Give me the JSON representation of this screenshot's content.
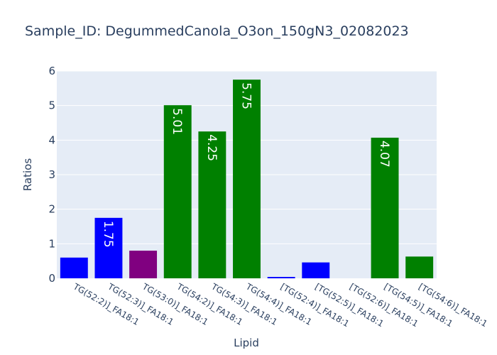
{
  "chart_data": {
    "type": "bar",
    "title": "Sample_ID: DegummedCanola_O3on_150gN3_02082023",
    "xlabel": "Lipid",
    "ylabel": "Ratios",
    "ylim": [
      0,
      6
    ],
    "yticks": [
      0,
      1,
      2,
      3,
      4,
      5,
      6
    ],
    "grid": true,
    "plot_background": "#e5ecf6",
    "categories": [
      "TG(52:2)]_FA18:1",
      "TG(52:3)]_FA18:1",
      "TG(53:0)]_FA18:1",
      "TG(54:2)]_FA18:1",
      "TG(54:3)]_FA18:1",
      "TG(54:4)]_FA18:1",
      "[TG(52:4)]_FA18:1",
      "[TG(52:5)]_FA18:1",
      "[TG(52:6)]_FA18:1",
      "[TG(54:5)]_FA18:1",
      "[TG(54:6)]_FA18:1"
    ],
    "values": [
      0.6,
      1.75,
      0.8,
      5.01,
      4.25,
      5.75,
      0.04,
      0.46,
      0,
      4.07,
      0.63
    ],
    "colors": [
      "#0000ff",
      "#0000ff",
      "#800080",
      "#008000",
      "#008000",
      "#008000",
      "#0000ff",
      "#0000ff",
      "#0000ff",
      "#008000",
      "#008000"
    ],
    "data_labels": [
      "",
      "1.75",
      "",
      "5.01",
      "4.25",
      "5.75",
      "",
      "",
      "",
      "4.07",
      ""
    ]
  }
}
